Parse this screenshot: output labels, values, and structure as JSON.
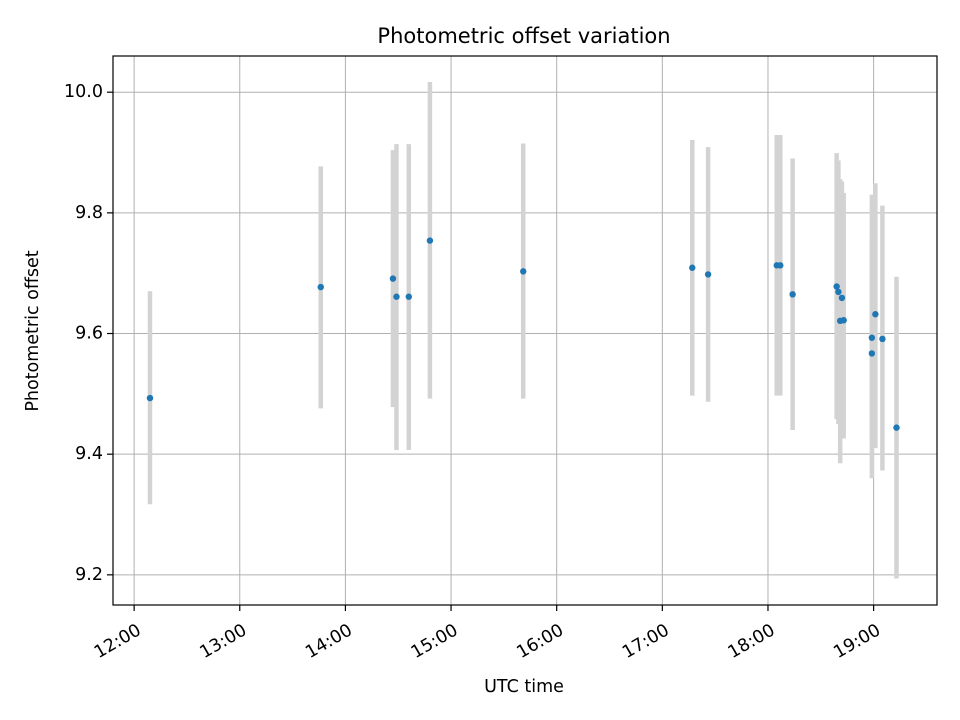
{
  "chart_data": {
    "type": "scatter",
    "title": "Photometric offset variation",
    "xlabel": "UTC time",
    "ylabel": "Photometric offset",
    "x_is_time": true,
    "xlim": [
      "11:48",
      "19:36"
    ],
    "ylim": [
      9.15,
      10.06
    ],
    "xticks": [
      "12:00",
      "13:00",
      "14:00",
      "15:00",
      "16:00",
      "17:00",
      "18:00",
      "19:00"
    ],
    "yticks": [
      9.2,
      9.4,
      9.6,
      9.8,
      10.0
    ],
    "ytick_labels": [
      "9.2",
      "9.4",
      "9.6",
      "9.8",
      "10.0"
    ],
    "grid": true,
    "point_color": "#1f77b4",
    "errorbar_color": "#d3d3d3",
    "series": [
      {
        "points": [
          {
            "x": "12:09",
            "y": 9.493,
            "ylow": 9.317,
            "yhigh": 9.67
          },
          {
            "x": "13:46",
            "y": 9.677,
            "ylow": 9.476,
            "yhigh": 9.877
          },
          {
            "x": "14:27",
            "y": 9.691,
            "ylow": 9.478,
            "yhigh": 9.904
          },
          {
            "x": "14:29",
            "y": 9.661,
            "ylow": 9.407,
            "yhigh": 9.914
          },
          {
            "x": "14:36",
            "y": 9.661,
            "ylow": 9.407,
            "yhigh": 9.914
          },
          {
            "x": "14:48",
            "y": 9.754,
            "ylow": 9.492,
            "yhigh": 10.017
          },
          {
            "x": "15:41",
            "y": 9.703,
            "ylow": 9.492,
            "yhigh": 9.915
          },
          {
            "x": "17:17",
            "y": 9.709,
            "ylow": 9.497,
            "yhigh": 9.921
          },
          {
            "x": "17:26",
            "y": 9.698,
            "ylow": 9.487,
            "yhigh": 9.909
          },
          {
            "x": "18:05",
            "y": 9.713,
            "ylow": 9.497,
            "yhigh": 9.929
          },
          {
            "x": "18:07",
            "y": 9.713,
            "ylow": 9.497,
            "yhigh": 9.929
          },
          {
            "x": "18:14",
            "y": 9.665,
            "ylow": 9.44,
            "yhigh": 9.89
          },
          {
            "x": "18:39",
            "y": 9.678,
            "ylow": 9.458,
            "yhigh": 9.899
          },
          {
            "x": "18:40",
            "y": 9.669,
            "ylow": 9.45,
            "yhigh": 9.887
          },
          {
            "x": "18:41",
            "y": 9.621,
            "ylow": 9.385,
            "yhigh": 9.856
          },
          {
            "x": "18:42",
            "y": 9.659,
            "ylow": 9.426,
            "yhigh": 9.852
          },
          {
            "x": "18:43",
            "y": 9.622,
            "ylow": 9.426,
            "yhigh": 9.833
          },
          {
            "x": "18:59",
            "y": 9.593,
            "ylow": 9.36,
            "yhigh": 9.83
          },
          {
            "x": "18:59",
            "y": 9.567,
            "ylow": 9.42,
            "yhigh": 9.76
          },
          {
            "x": "19:01",
            "y": 9.632,
            "ylow": 9.41,
            "yhigh": 9.849
          },
          {
            "x": "19:05",
            "y": 9.591,
            "ylow": 9.373,
            "yhigh": 9.812
          },
          {
            "x": "19:13",
            "y": 9.444,
            "ylow": 9.194,
            "yhigh": 9.694
          }
        ]
      }
    ]
  }
}
